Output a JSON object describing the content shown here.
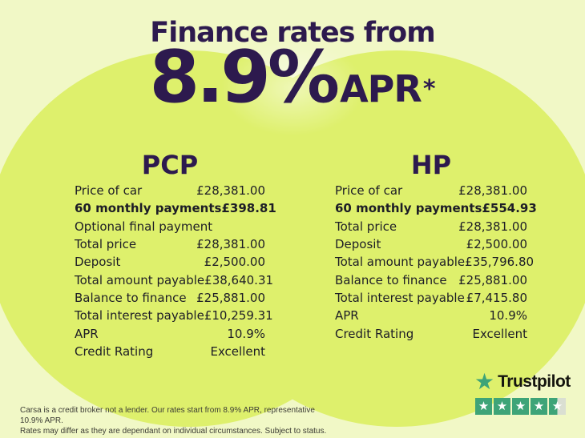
{
  "colors": {
    "background": "#f1f8c6",
    "circle": "#def06c",
    "heading": "#2d1a4e",
    "text": "#1d1d26",
    "disclaimer": "#3c3c35",
    "trustpilot_green": "#3ea478",
    "star_empty": "#dadfd2",
    "tp_text": "#15150f"
  },
  "header": {
    "title": "Finance rates from",
    "rate_value": "8.9%",
    "rate_suffix": "APR",
    "rate_asterisk": "*"
  },
  "tables": [
    {
      "id": "pcp",
      "heading": "PCP",
      "rows": [
        {
          "label": "Price of car",
          "value": "£28,381.00",
          "bold": false
        },
        {
          "label": "60 monthly payments",
          "value": "£398.81",
          "bold": true
        },
        {
          "label": "Optional final payment",
          "value": "",
          "bold": false
        },
        {
          "label": "Total price",
          "value": "£28,381.00",
          "bold": false
        },
        {
          "label": "Deposit",
          "value": "£2,500.00",
          "bold": false
        },
        {
          "label": "Total amount payable",
          "value": "£38,640.31",
          "bold": false
        },
        {
          "label": "Balance to finance",
          "value": "£25,881.00",
          "bold": false
        },
        {
          "label": "Total interest payable",
          "value": "£10,259.31",
          "bold": false
        },
        {
          "label": "APR",
          "value": "10.9%",
          "bold": false
        },
        {
          "label": "Credit Rating",
          "value": "Excellent",
          "bold": false
        }
      ]
    },
    {
      "id": "hp",
      "heading": "HP",
      "rows": [
        {
          "label": "Price of car",
          "value": "£28,381.00",
          "bold": false
        },
        {
          "label": "60 monthly payments",
          "value": "£554.93",
          "bold": true
        },
        {
          "label": "Total price",
          "value": "£28,381.00",
          "bold": false
        },
        {
          "label": "Deposit",
          "value": "£2,500.00",
          "bold": false
        },
        {
          "label": "Total amount payable",
          "value": "£35,796.80",
          "bold": false
        },
        {
          "label": "Balance to finance",
          "value": "£25,881.00",
          "bold": false
        },
        {
          "label": "Total interest payable",
          "value": "£7,415.80",
          "bold": false
        },
        {
          "label": "APR",
          "value": "10.9%",
          "bold": false
        },
        {
          "label": "Credit Rating",
          "value": "Excellent",
          "bold": false
        }
      ]
    }
  ],
  "footer": {
    "disclaimer_line1": "Carsa is a credit broker not a lender. Our rates start from 8.9% APR, representative 10.9% APR.",
    "disclaimer_line2": "Rates may differ as they are dependant on individual circumstances. Subject to status.",
    "trustpilot": {
      "name": "Trustpilot",
      "star_icon": "★",
      "star_count": 5,
      "stars_filled": 4.5
    }
  }
}
